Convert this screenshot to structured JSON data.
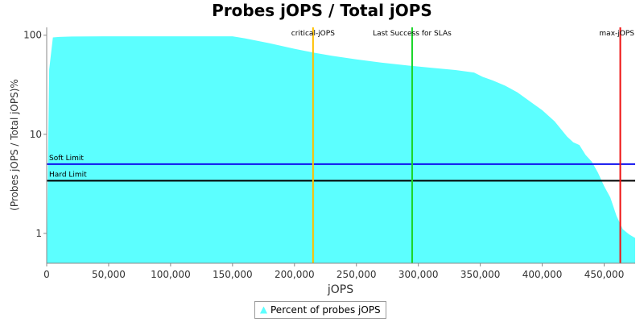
{
  "chart_data": {
    "type": "area",
    "title": "Probes jOPS / Total jOPS",
    "xlabel": "jOPS",
    "ylabel": "(Probes jOPS / Total jOPS)%",
    "xlim": [
      0,
      475000
    ],
    "ylim": [
      0.5,
      120
    ],
    "yscale": "log",
    "x_ticks": [
      0,
      50000,
      100000,
      150000,
      200000,
      250000,
      300000,
      350000,
      400000,
      450000
    ],
    "x_tick_labels": [
      "0",
      "50,000",
      "100,000",
      "150,000",
      "200,000",
      "250,000",
      "300,000",
      "350,000",
      "400,000",
      "450,000"
    ],
    "y_ticks": [
      1,
      10,
      100
    ],
    "y_tick_labels": [
      "1",
      "10",
      "100"
    ],
    "grid": false,
    "legend_position": "bottom",
    "series": [
      {
        "name": "Percent of probes jOPS",
        "color": "#5cffff",
        "x": [
          0,
          2000,
          5000,
          10000,
          20000,
          50000,
          100000,
          150000,
          160000,
          180000,
          200000,
          215000,
          230000,
          250000,
          270000,
          295000,
          310000,
          330000,
          345000,
          352000,
          360000,
          370000,
          380000,
          390000,
          400000,
          410000,
          420000,
          425000,
          430000,
          435000,
          440000,
          445000,
          450000,
          455000,
          460000,
          465000,
          470000,
          475000
        ],
        "y": [
          0.5,
          45,
          95,
          96,
          97,
          97.5,
          97.5,
          97.5,
          93,
          83,
          73,
          67,
          62,
          57,
          53,
          49,
          47,
          44.5,
          42,
          38,
          35,
          31,
          26.5,
          21.5,
          17.5,
          13.5,
          9.5,
          8.3,
          7.8,
          6.2,
          5.3,
          4.1,
          3.0,
          2.3,
          1.5,
          1.1,
          0.98,
          0.9
        ]
      }
    ],
    "markers": [
      {
        "label": "critical-jOPS",
        "x": 215000,
        "color": "#ffc000"
      },
      {
        "label": "Last Success for SLAs",
        "x": 295000,
        "color": "#1bd62a"
      },
      {
        "label": "max-jOPS",
        "x": 463000,
        "color": "#ee1111"
      }
    ],
    "limits": [
      {
        "label": "Soft Limit",
        "y": 5.0,
        "color": "#1111ee"
      },
      {
        "label": "Hard Limit",
        "y": 3.4,
        "color": "#000000"
      }
    ]
  },
  "legend": {
    "label": "Percent of probes jOPS"
  }
}
